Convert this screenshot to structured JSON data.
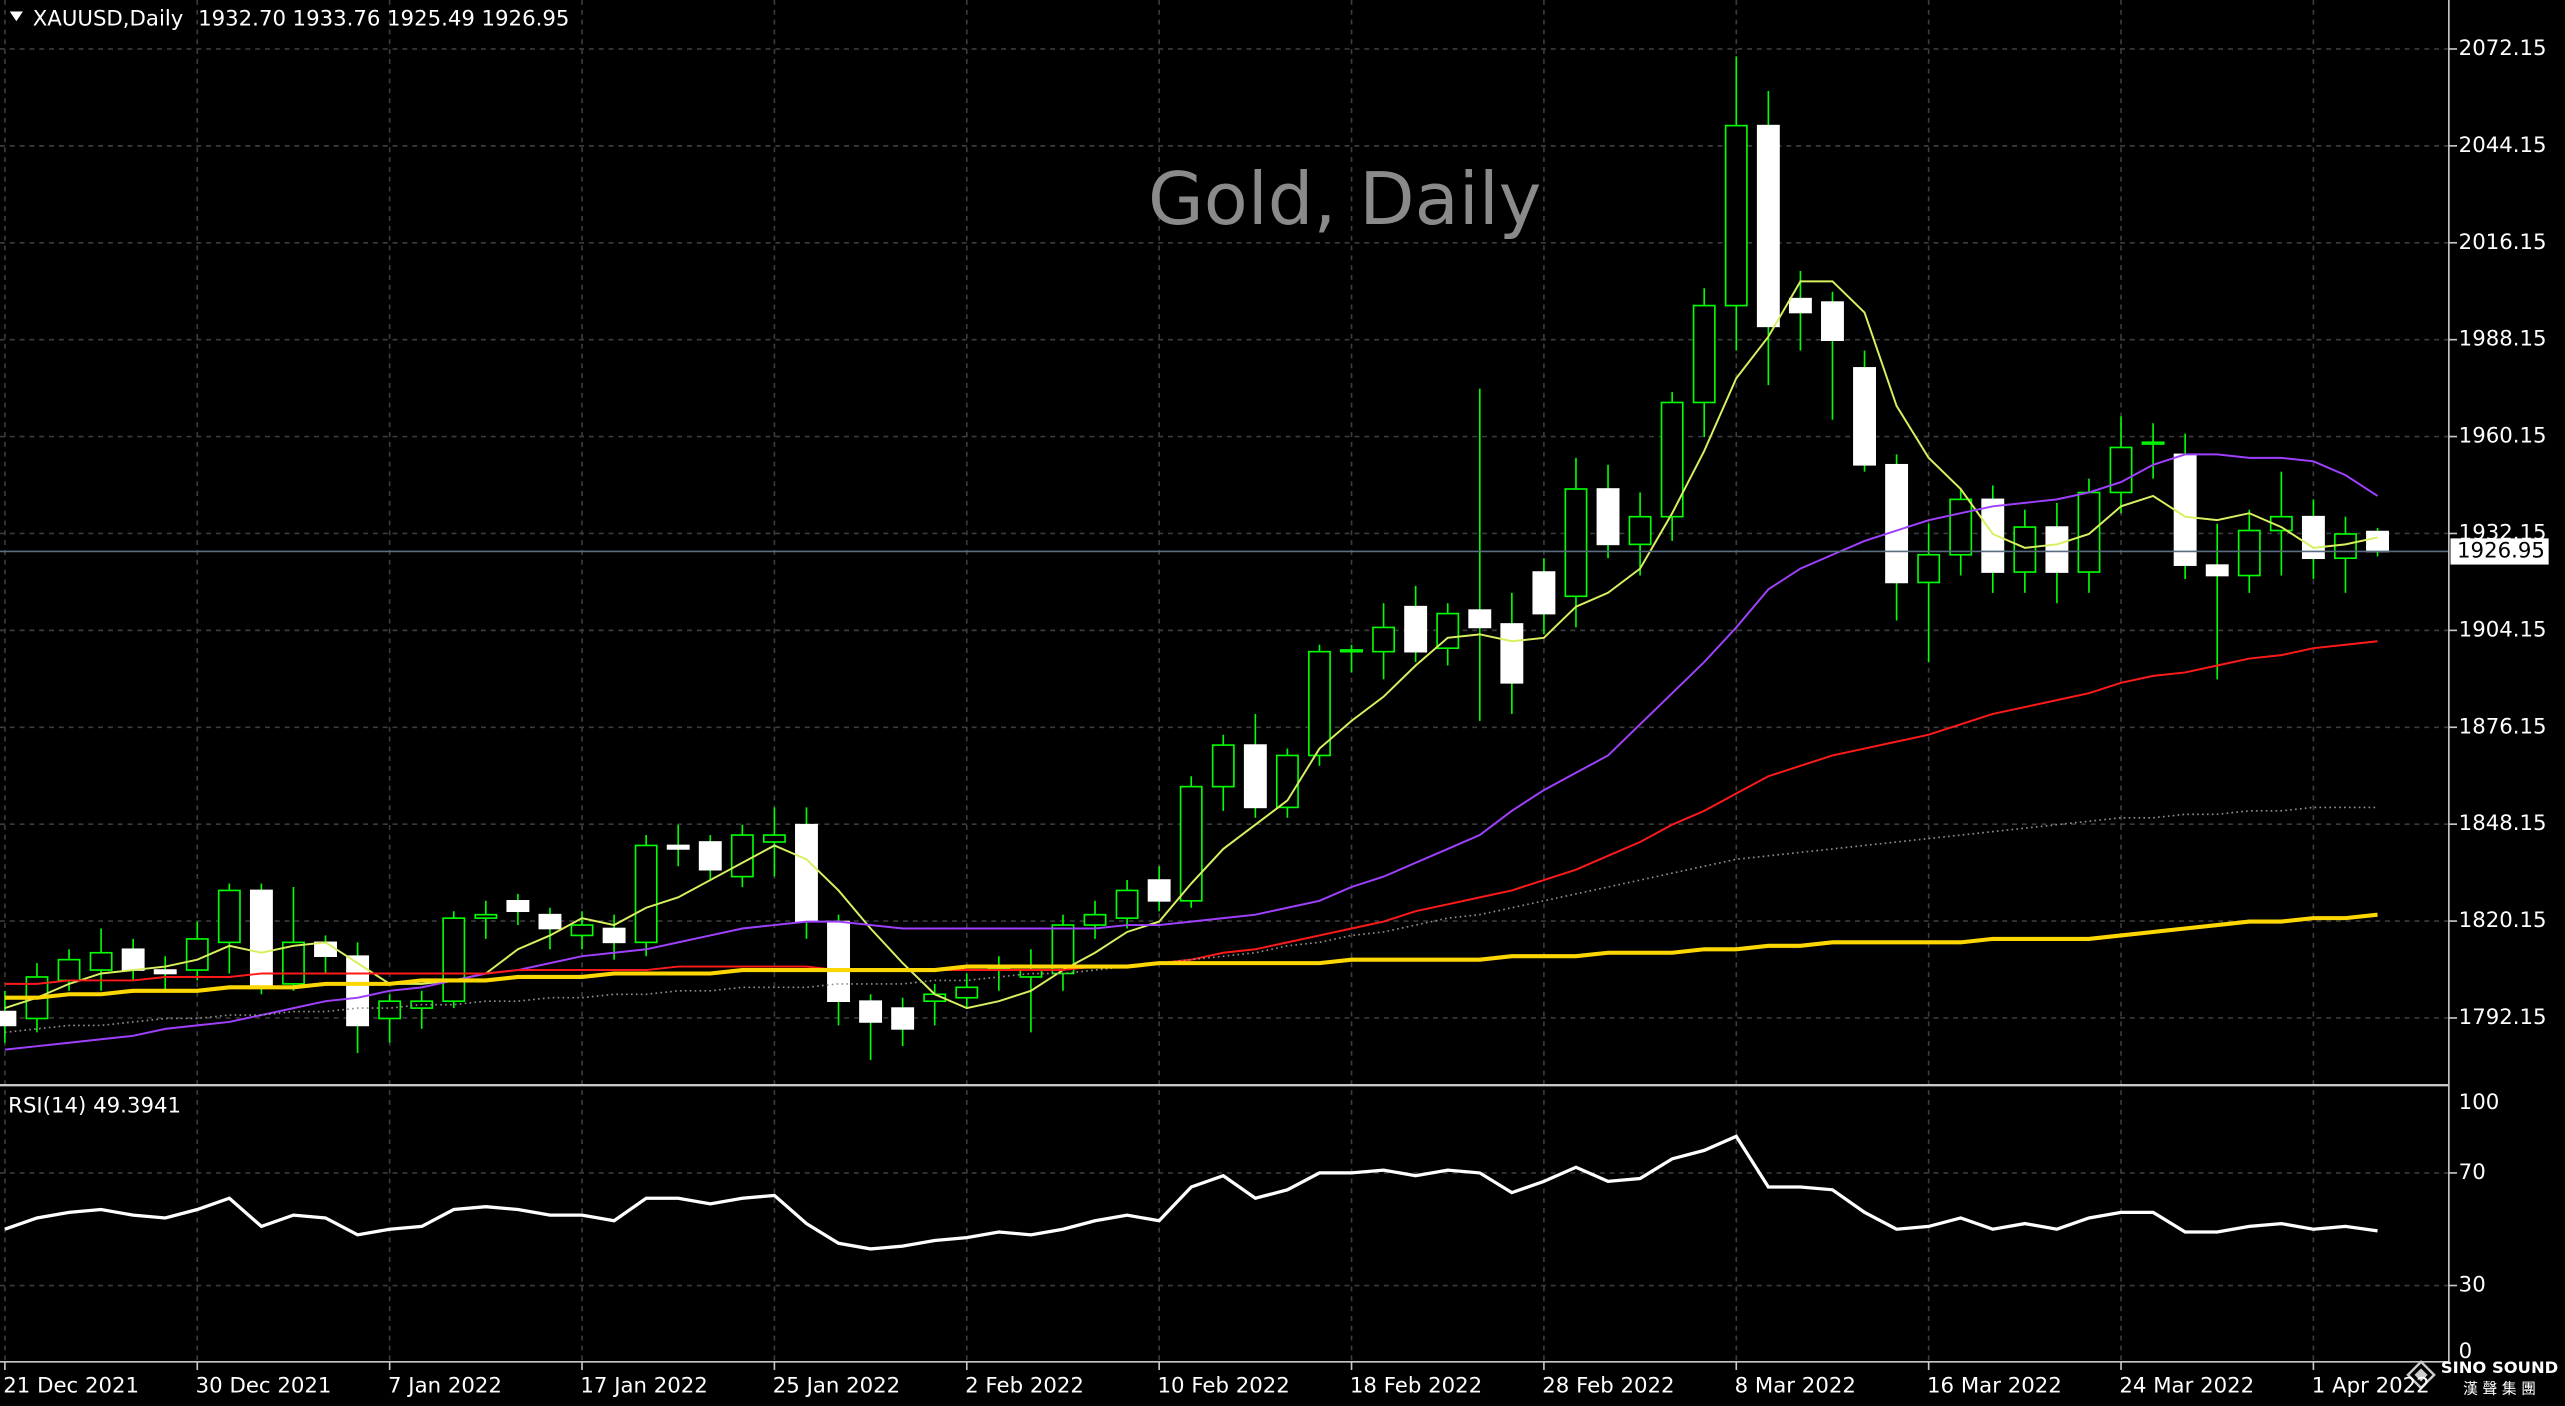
{
  "chart_data": [
    {
      "type": "candlestick",
      "title": "Gold, Daily",
      "symbol": "XAUUSD,Daily",
      "ohlc_labels": [
        "1932.70",
        "1933.76",
        "1925.49",
        "1926.95"
      ],
      "watermark": "SINO SOUND",
      "watermark_sub": "漢 聲 集 團",
      "categories": [
        "21 Dec 2021",
        null,
        null,
        null,
        null,
        null,
        "30 Dec 2021",
        null,
        null,
        null,
        null,
        null,
        "7 Jan 2022",
        null,
        null,
        null,
        null,
        null,
        "17 Jan 2022",
        null,
        null,
        null,
        null,
        null,
        "25 Jan 2022",
        null,
        null,
        null,
        null,
        null,
        "2 Feb 2022",
        null,
        null,
        null,
        null,
        null,
        "10 Feb 2022",
        null,
        null,
        null,
        null,
        null,
        "18 Feb 2022",
        null,
        null,
        null,
        null,
        null,
        "28 Feb 2022",
        null,
        null,
        null,
        null,
        null,
        "8 Mar 2022",
        null,
        null,
        null,
        null,
        null,
        "16 Mar 2022",
        null,
        null,
        null,
        null,
        null,
        "24 Mar 2022",
        null,
        null,
        null,
        null,
        null,
        "1 Apr 2022",
        null,
        null
      ],
      "open": [
        1794,
        1792,
        1803,
        1806,
        1812,
        1806,
        1806,
        1814,
        1829,
        1802,
        1814,
        1810,
        1792,
        1795,
        1797,
        1821,
        1826,
        1822,
        1816,
        1818,
        1814,
        1842,
        1843,
        1833,
        1843,
        1848,
        1820,
        1797,
        1795,
        1797,
        1798,
        1807,
        1804,
        1805,
        1819,
        1821,
        1832,
        1826,
        1859,
        1871,
        1853,
        1868,
        1898,
        1898,
        1911,
        1899,
        1910,
        1906,
        1921,
        1914,
        1945,
        1929,
        1937,
        1970,
        1998,
        2050,
        2000,
        1999,
        1980,
        1952,
        1918,
        1926,
        1942,
        1921,
        1934,
        1921,
        1944,
        1958,
        1955,
        1923,
        1920,
        1933,
        1937,
        1925,
        1932.7
      ],
      "high": [
        1800,
        1808,
        1812,
        1818,
        1815,
        1810,
        1820,
        1831,
        1831,
        1830,
        1816,
        1814,
        1799,
        1800,
        1823,
        1826,
        1828,
        1824,
        1823,
        1822,
        1845,
        1848,
        1845,
        1848,
        1853,
        1853,
        1822,
        1799,
        1798,
        1802,
        1805,
        1810,
        1812,
        1822,
        1826,
        1832,
        1836,
        1862,
        1874,
        1880,
        1870,
        1900,
        1900,
        1912,
        1917,
        1912,
        1974,
        1915,
        1925,
        1954,
        1952,
        1944,
        1973,
        2003,
        2070,
        2060,
        2008,
        2002,
        1985,
        1955,
        1935,
        1945,
        1946,
        1939,
        1941,
        1948,
        1966,
        1964,
        1961,
        1935,
        1939,
        1950,
        1942,
        1937,
        1933.76
      ],
      "low": [
        1785,
        1788,
        1800,
        1800,
        1803,
        1800,
        1803,
        1805,
        1799,
        1800,
        1805,
        1782,
        1785,
        1789,
        1795,
        1815,
        1819,
        1812,
        1812,
        1809,
        1810,
        1836,
        1832,
        1830,
        1833,
        1815,
        1790,
        1780,
        1784,
        1790,
        1795,
        1800,
        1788,
        1800,
        1815,
        1818,
        1823,
        1824,
        1852,
        1850,
        1850,
        1865,
        1892,
        1890,
        1895,
        1894,
        1878,
        1880,
        1903,
        1905,
        1925,
        1920,
        1930,
        1960,
        1985,
        1975,
        1985,
        1965,
        1950,
        1907,
        1895,
        1920,
        1915,
        1915,
        1912,
        1915,
        1938,
        1948,
        1919,
        1890,
        1915,
        1920,
        1919,
        1915,
        1925.49
      ],
      "close": [
        1790,
        1804,
        1809,
        1811,
        1806,
        1805,
        1815,
        1829,
        1801,
        1814,
        1810,
        1790,
        1797,
        1797,
        1821,
        1822,
        1823,
        1818,
        1819,
        1814,
        1842,
        1841,
        1835,
        1845,
        1845,
        1820,
        1797,
        1791,
        1789,
        1799,
        1801,
        1807,
        1806,
        1819,
        1822,
        1829,
        1826,
        1859,
        1871,
        1853,
        1868,
        1898,
        1898.5,
        1905,
        1898,
        1909,
        1905,
        1889,
        1909,
        1945,
        1929,
        1937,
        1970,
        1998,
        2050,
        1992,
        1996,
        1988,
        1952,
        1918,
        1926,
        1942,
        1921,
        1934,
        1921,
        1944,
        1957,
        1958.5,
        1923,
        1920,
        1933,
        1937,
        1925,
        1932,
        1926.95
      ],
      "bull_color": "#000000",
      "bear_color": "#ffffff",
      "wick_color": "#00ff00",
      "series": [
        {
          "color": "#d8f060",
          "style": "solid",
          "values": [
            1795,
            1798,
            1802,
            1805,
            1806,
            1807,
            1809,
            1813,
            1811,
            1813,
            1814,
            1808,
            1802,
            1802,
            1803,
            1805,
            1812,
            1816,
            1821,
            1819,
            1824,
            1827,
            1832,
            1837,
            1842,
            1838,
            1829,
            1818,
            1808,
            1799,
            1795,
            1797,
            1800,
            1806,
            1811,
            1817,
            1820,
            1831,
            1841,
            1848,
            1855,
            1870,
            1878,
            1885,
            1894,
            1902,
            1903,
            1901,
            1902,
            1911,
            1915,
            1922,
            1938,
            1956,
            1977,
            1989,
            2005,
            2005,
            1996,
            1969,
            1954,
            1945,
            1932,
            1928,
            1929,
            1932,
            1940,
            1943,
            1937,
            1936,
            1938,
            1934,
            1928,
            1929,
            1931
          ]
        },
        {
          "color": "#a040ff",
          "style": "solid",
          "values": [
            1783,
            1784,
            1785,
            1786,
            1787,
            1789,
            1790,
            1791,
            1793,
            1795,
            1797,
            1798,
            1800,
            1801,
            1803,
            1805,
            1806,
            1808,
            1810,
            1811,
            1812,
            1814,
            1816,
            1818,
            1819,
            1820,
            1820,
            1819,
            1818,
            1818,
            1818,
            1818,
            1818,
            1818,
            1818,
            1819,
            1819,
            1820,
            1821,
            1822,
            1824,
            1826,
            1830,
            1833,
            1837,
            1841,
            1845,
            1852,
            1858,
            1863,
            1868,
            1877,
            1886,
            1895,
            1905,
            1916,
            1922,
            1926,
            1930,
            1933,
            1936,
            1938,
            1940,
            1941,
            1942,
            1944,
            1947,
            1952,
            1955,
            1955,
            1954,
            1954,
            1953,
            1949,
            1943
          ]
        },
        {
          "color": "#ff1a1a",
          "style": "solid",
          "values": [
            1802,
            1802,
            1803,
            1803,
            1803,
            1804,
            1804,
            1804,
            1805,
            1805,
            1805,
            1805,
            1805,
            1805,
            1805,
            1805,
            1806,
            1806,
            1806,
            1806,
            1806,
            1807,
            1807,
            1807,
            1807,
            1807,
            1806,
            1806,
            1806,
            1806,
            1806,
            1806,
            1806,
            1806,
            1807,
            1807,
            1808,
            1809,
            1811,
            1812,
            1814,
            1816,
            1818,
            1820,
            1823,
            1825,
            1827,
            1829,
            1832,
            1835,
            1839,
            1843,
            1848,
            1852,
            1857,
            1862,
            1865,
            1868,
            1870,
            1872,
            1874,
            1877,
            1880,
            1882,
            1884,
            1886,
            1889,
            1891,
            1892,
            1894,
            1896,
            1897,
            1899,
            1900,
            1901
          ]
        },
        {
          "color": "#909090",
          "style": "dotted",
          "values": [
            1788,
            1789,
            1790,
            1790,
            1791,
            1792,
            1792,
            1793,
            1793,
            1794,
            1794,
            1795,
            1795,
            1796,
            1796,
            1797,
            1797,
            1798,
            1798,
            1799,
            1799,
            1800,
            1800,
            1801,
            1801,
            1801,
            1802,
            1802,
            1802,
            1803,
            1803,
            1804,
            1805,
            1805,
            1806,
            1807,
            1808,
            1809,
            1810,
            1811,
            1813,
            1814,
            1816,
            1817,
            1819,
            1821,
            1822,
            1824,
            1826,
            1828,
            1830,
            1832,
            1834,
            1836,
            1838,
            1839,
            1840,
            1841,
            1842,
            1843,
            1844,
            1845,
            1846,
            1847,
            1848,
            1849,
            1850,
            1850,
            1851,
            1851,
            1852,
            1852,
            1853,
            1853,
            1853
          ]
        },
        {
          "color": "#ffd700",
          "style": "thick",
          "values": [
            1798,
            1798,
            1799,
            1799,
            1800,
            1800,
            1800,
            1801,
            1801,
            1801,
            1802,
            1802,
            1802,
            1803,
            1803,
            1803,
            1804,
            1804,
            1804,
            1805,
            1805,
            1805,
            1805,
            1806,
            1806,
            1806,
            1806,
            1806,
            1806,
            1806,
            1807,
            1807,
            1807,
            1807,
            1807,
            1807,
            1808,
            1808,
            1808,
            1808,
            1808,
            1808,
            1809,
            1809,
            1809,
            1809,
            1809,
            1810,
            1810,
            1810,
            1811,
            1811,
            1811,
            1812,
            1812,
            1813,
            1813,
            1814,
            1814,
            1814,
            1814,
            1814,
            1815,
            1815,
            1815,
            1815,
            1816,
            1817,
            1818,
            1819,
            1820,
            1820,
            1821,
            1821,
            1822
          ]
        }
      ],
      "last_price": {
        "value": 1926.95,
        "label": "1926.95"
      },
      "ylim": [
        1773.2,
        2086.3
      ],
      "yticks": [
        1792.15,
        1820.15,
        1848.15,
        1876.15,
        1904.15,
        1932.15,
        1960.15,
        1988.15,
        2016.15,
        2044.15,
        2072.15
      ],
      "grid": true
    },
    {
      "type": "line",
      "title": "RSI(14) 49.3941",
      "color": "#ffffff",
      "values": [
        50,
        54,
        56,
        57,
        55,
        54,
        57,
        61,
        51,
        55,
        54,
        48,
        50,
        51,
        57,
        58,
        57,
        55,
        55,
        53,
        61,
        61,
        59,
        61,
        62,
        52,
        45,
        43,
        44,
        46,
        47,
        49,
        48,
        50,
        53,
        55,
        53,
        65,
        69,
        61,
        64,
        70,
        70,
        71,
        69,
        71,
        70,
        63,
        67,
        72,
        67,
        68,
        75,
        78,
        83,
        65,
        65,
        64,
        56,
        50,
        51,
        54,
        50,
        52,
        50,
        54,
        56,
        56,
        49,
        49,
        51,
        52,
        50,
        51,
        49.3941
      ],
      "ylim": [
        2.9,
        100
      ],
      "yticks": [
        0,
        30,
        70,
        100
      ],
      "grid": true
    }
  ]
}
